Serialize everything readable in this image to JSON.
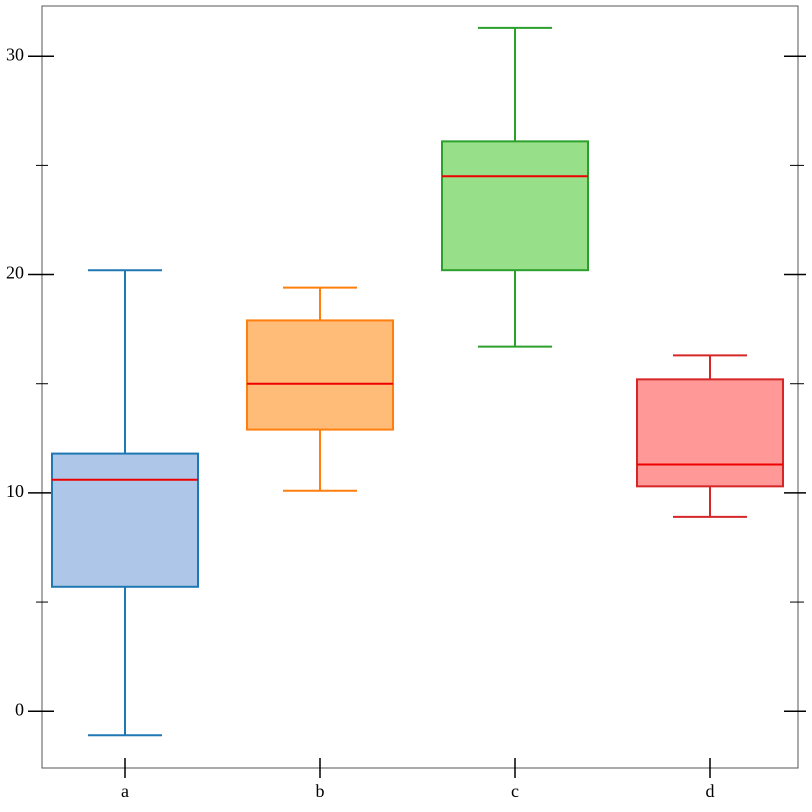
{
  "chart_data": {
    "type": "box",
    "categories": [
      "a",
      "b",
      "c",
      "d"
    ],
    "boxes": [
      {
        "min": -1.1,
        "q1": 5.7,
        "median": 10.6,
        "q3": 11.8,
        "max": 20.2
      },
      {
        "min": 10.1,
        "q1": 12.9,
        "median": 15.0,
        "q3": 17.9,
        "max": 19.4
      },
      {
        "min": 16.7,
        "q1": 20.2,
        "median": 24.5,
        "q3": 26.1,
        "max": 31.3
      },
      {
        "min": 8.9,
        "q1": 10.3,
        "median": 11.3,
        "q3": 15.2,
        "max": 16.3
      }
    ],
    "colors": [
      "#1f77b4",
      "#ff7f0e",
      "#2ca02c",
      "#d62728"
    ],
    "fills": [
      "#aec7e8",
      "#ffbb78",
      "#98df8a",
      "#ff9896"
    ],
    "median_color": "#ee0000",
    "ylim": [
      -2.6,
      32.3
    ],
    "yticks": [
      0,
      10,
      20,
      30
    ],
    "minor_yticks": [
      5,
      15,
      25
    ]
  }
}
